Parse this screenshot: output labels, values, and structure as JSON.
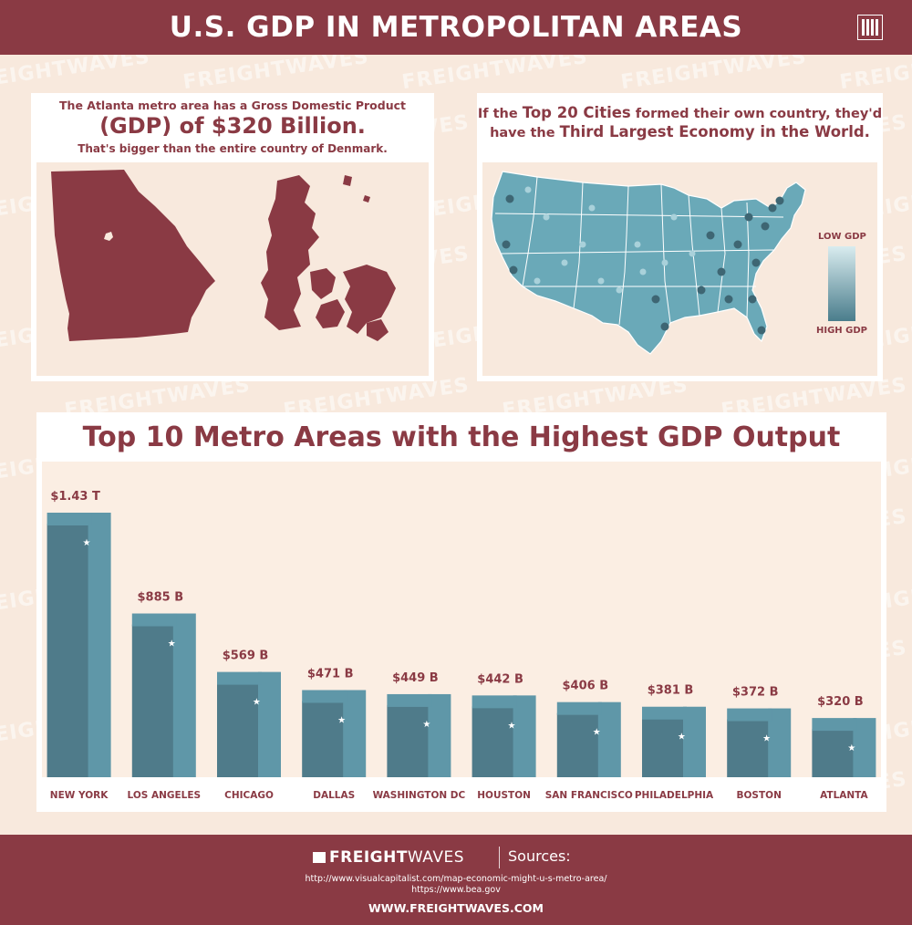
{
  "header": {
    "title": "U.S. GDP IN METROPOLITAN AREAS"
  },
  "watermark": "FREIGHTWAVES",
  "left_panel": {
    "line1": "The Atlanta metro area has a Gross Domestic Product",
    "line2": "(GDP) of $320 Billion.",
    "line3": "That's bigger than the entire country of Denmark."
  },
  "right_panel": {
    "pre1": "If the ",
    "b1": "Top 20 Cities",
    "post1": " formed their own country, they'd",
    "pre2": "have the ",
    "b2": "Third Largest Economy in the World.",
    "legend_low": "LOW GDP",
    "legend_high": "HIGH GDP"
  },
  "colors": {
    "brand": "#8a3a44",
    "bar_dark": "#4f7b8a",
    "bar_light": "#5f97a8",
    "bg": "#f8e9dd"
  },
  "chart_data": {
    "type": "bar",
    "title": "Top 10 Metro Areas with the Highest GDP Output",
    "categories": [
      "NEW YORK",
      "LOS ANGELES",
      "CHICAGO",
      "DALLAS",
      "WASHINGTON DC",
      "HOUSTON",
      "SAN FRANCISCO",
      "PHILADELPHIA",
      "BOSTON",
      "ATLANTA"
    ],
    "value_labels": [
      "$1.43 T",
      "$885 B",
      "$569 B",
      "$471 B",
      "$449 B",
      "$442 B",
      "$406 B",
      "$381 B",
      "$372 B",
      "$320 B"
    ],
    "values": [
      1430,
      885,
      569,
      471,
      449,
      442,
      406,
      381,
      372,
      320
    ],
    "unit": "billions USD"
  },
  "footer": {
    "logo_bold": "FREIGHT",
    "logo_thin": "WAVES",
    "sources_label": "Sources:",
    "url1": "http://www.visualcapitalist.com/map-economic-might-u-s-metro-area/",
    "url2": "https://www.bea.gov",
    "site": "WWW.FREIGHTWAVES.COM"
  }
}
